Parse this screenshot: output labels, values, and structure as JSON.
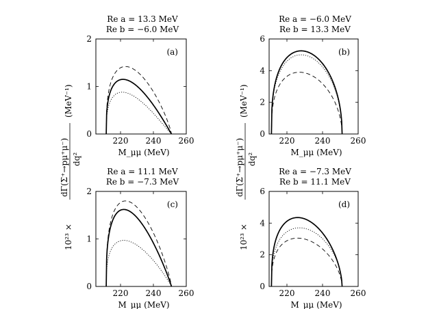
{
  "figure": {
    "ylabel_prefix": "10²³ ×",
    "ylabel_numerator": "dΓ(Σ⁺→pμ⁺μ⁻)",
    "ylabel_denominator": "dq²",
    "ylabel_unit": "(MeV⁻¹)"
  },
  "chart_data": [
    {
      "type": "line",
      "panel_label": "(a)",
      "param_a": "Re a = 13.3 MeV",
      "param_b": "Re b = −6.0 MeV",
      "xlabel": "M_μμ (MeV)",
      "xlim": [
        205,
        260
      ],
      "ylim": [
        0,
        2
      ],
      "xticks": [
        220,
        240,
        260
      ],
      "xtick_labels": [
        "220",
        "240",
        "260"
      ],
      "yticks": [
        0,
        1,
        2
      ],
      "ytick_labels": [
        "0",
        "1",
        "2"
      ],
      "endpoints": [
        211.3,
        251.0
      ],
      "series": [
        {
          "style": "solid",
          "peak_x": 221.5,
          "peak_y": 1.15
        },
        {
          "style": "dashed",
          "peak_x": 223.0,
          "peak_y": 1.42
        },
        {
          "style": "dotted",
          "peak_x": 221.0,
          "peak_y": 0.88
        }
      ]
    },
    {
      "type": "line",
      "panel_label": "(b)",
      "param_a": "Re a = −6.0 MeV",
      "param_b": "Re b = 13.3 MeV",
      "xlabel": "M_μμ (MeV)",
      "xlim": [
        210,
        260
      ],
      "ylim": [
        0,
        6
      ],
      "xticks": [
        220,
        240,
        260
      ],
      "xtick_labels": [
        "220",
        "240",
        "260"
      ],
      "yticks": [
        0,
        2,
        4,
        6
      ],
      "ytick_labels": [
        "0",
        "2",
        "4",
        "6"
      ],
      "endpoints": [
        211.3,
        251.0
      ],
      "series": [
        {
          "style": "solid",
          "peak_x": 228.0,
          "peak_y": 5.25
        },
        {
          "style": "dotted",
          "peak_x": 228.0,
          "peak_y": 5.0
        },
        {
          "style": "dashed",
          "peak_x": 227.0,
          "peak_y": 3.9
        }
      ]
    },
    {
      "type": "line",
      "panel_label": "(c)",
      "param_a": "Re a = 11.1 MeV",
      "param_b": "Re b = −7.3 MeV",
      "xlabel": "M_μμ (MeV)",
      "xlim": [
        205,
        260
      ],
      "ylim": [
        0,
        2
      ],
      "xticks": [
        220,
        240,
        260
      ],
      "xtick_labels": [
        "220",
        "240",
        "260"
      ],
      "yticks": [
        0,
        1,
        2
      ],
      "ytick_labels": [
        "0",
        "1",
        "2"
      ],
      "endpoints": [
        211.3,
        251.0
      ],
      "series": [
        {
          "style": "solid",
          "peak_x": 222.0,
          "peak_y": 1.62
        },
        {
          "style": "dashed",
          "peak_x": 223.0,
          "peak_y": 1.8
        },
        {
          "style": "dotted",
          "peak_x": 222.0,
          "peak_y": 0.97
        }
      ]
    },
    {
      "type": "line",
      "panel_label": "(d)",
      "param_a": "Re a = −7.3 MeV",
      "param_b": "Re b = 11.1 MeV",
      "xlabel": "M_μμ (MeV)",
      "xlim": [
        210,
        260
      ],
      "ylim": [
        0,
        6
      ],
      "xticks": [
        220,
        240,
        260
      ],
      "xtick_labels": [
        "220",
        "240",
        "260"
      ],
      "yticks": [
        0,
        2,
        4,
        6
      ],
      "ytick_labels": [
        "0",
        "2",
        "4",
        "6"
      ],
      "endpoints": [
        211.3,
        251.0
      ],
      "series": [
        {
          "style": "solid",
          "peak_x": 226.0,
          "peak_y": 4.35
        },
        {
          "style": "dotted",
          "peak_x": 227.0,
          "peak_y": 3.7
        },
        {
          "style": "dashed",
          "peak_x": 226.0,
          "peak_y": 3.05
        }
      ]
    }
  ]
}
